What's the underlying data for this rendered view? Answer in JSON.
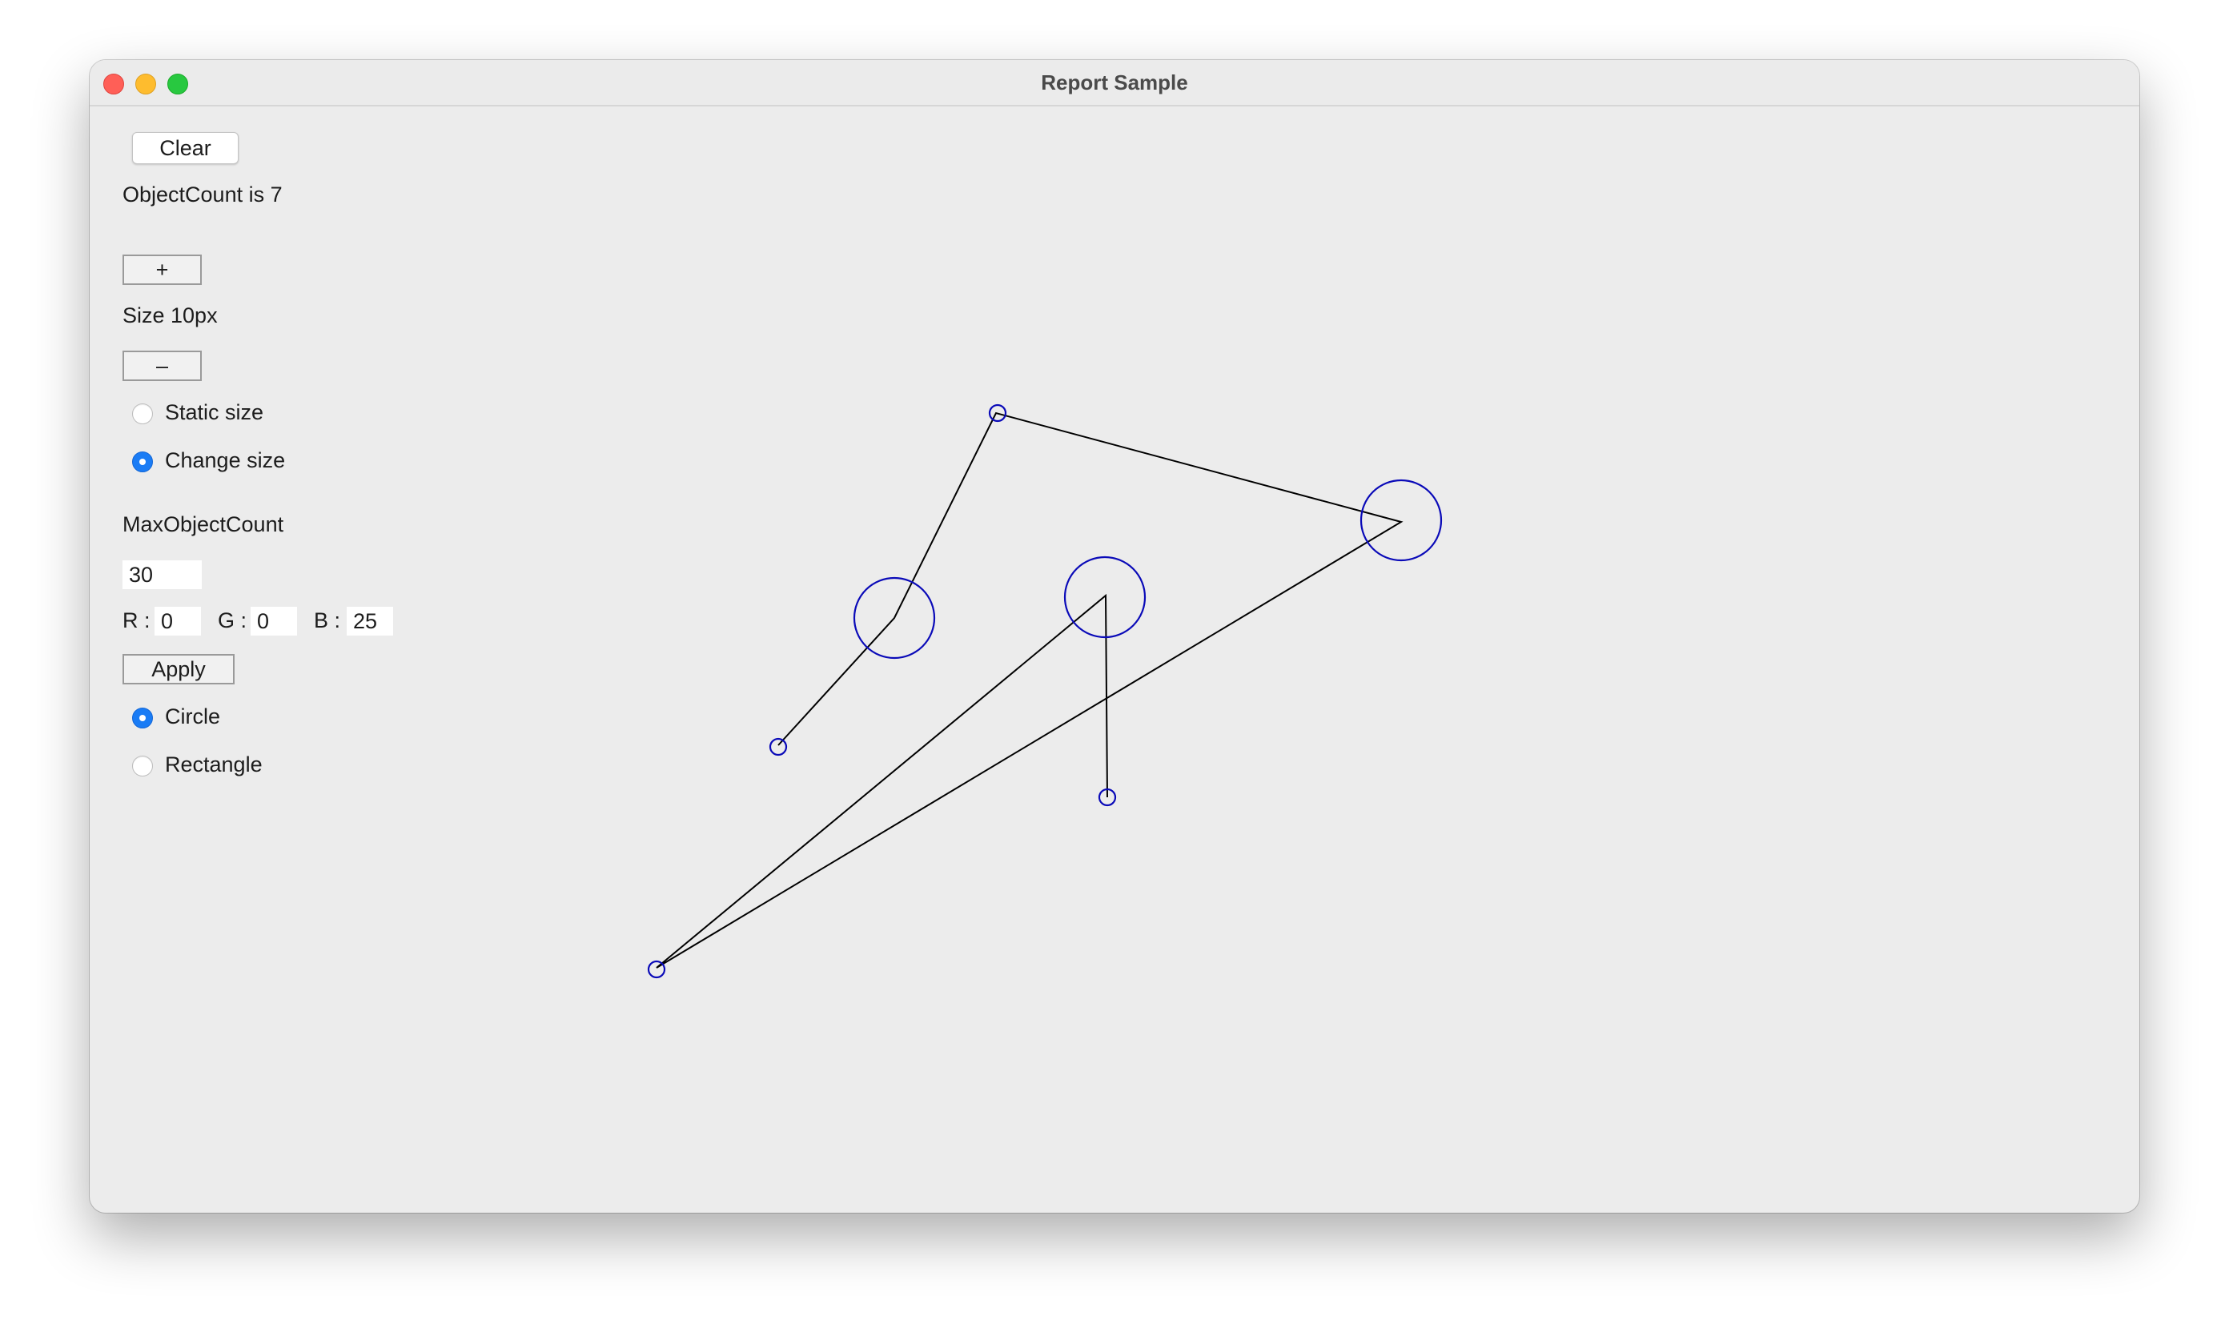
{
  "window": {
    "title": "Report Sample"
  },
  "controls": {
    "clear_label": "Clear",
    "object_count_text": "ObjectCount is 7",
    "plus_label": "+",
    "size_text": "Size 10px",
    "minus_label": "–",
    "size_mode": {
      "static_label": "Static size",
      "change_label": "Change size",
      "selected": "Change size"
    },
    "max_object_count_label": "MaxObjectCount",
    "max_object_count_value": "30",
    "color": {
      "r_label": "R :",
      "r_value": "0",
      "g_label": "G :",
      "g_value": "0",
      "b_label": "B :",
      "b_value": "25"
    },
    "apply_label": "Apply",
    "shape": {
      "circle_label": "Circle",
      "rectangle_label": "Rectangle",
      "selected": "Circle"
    }
  },
  "drawing": {
    "stroke_color": "#0a0ab8",
    "line_color": "#000000"
  },
  "colors": {
    "radio_selected": "#1a7cf5",
    "window_bg": "#ececec"
  }
}
